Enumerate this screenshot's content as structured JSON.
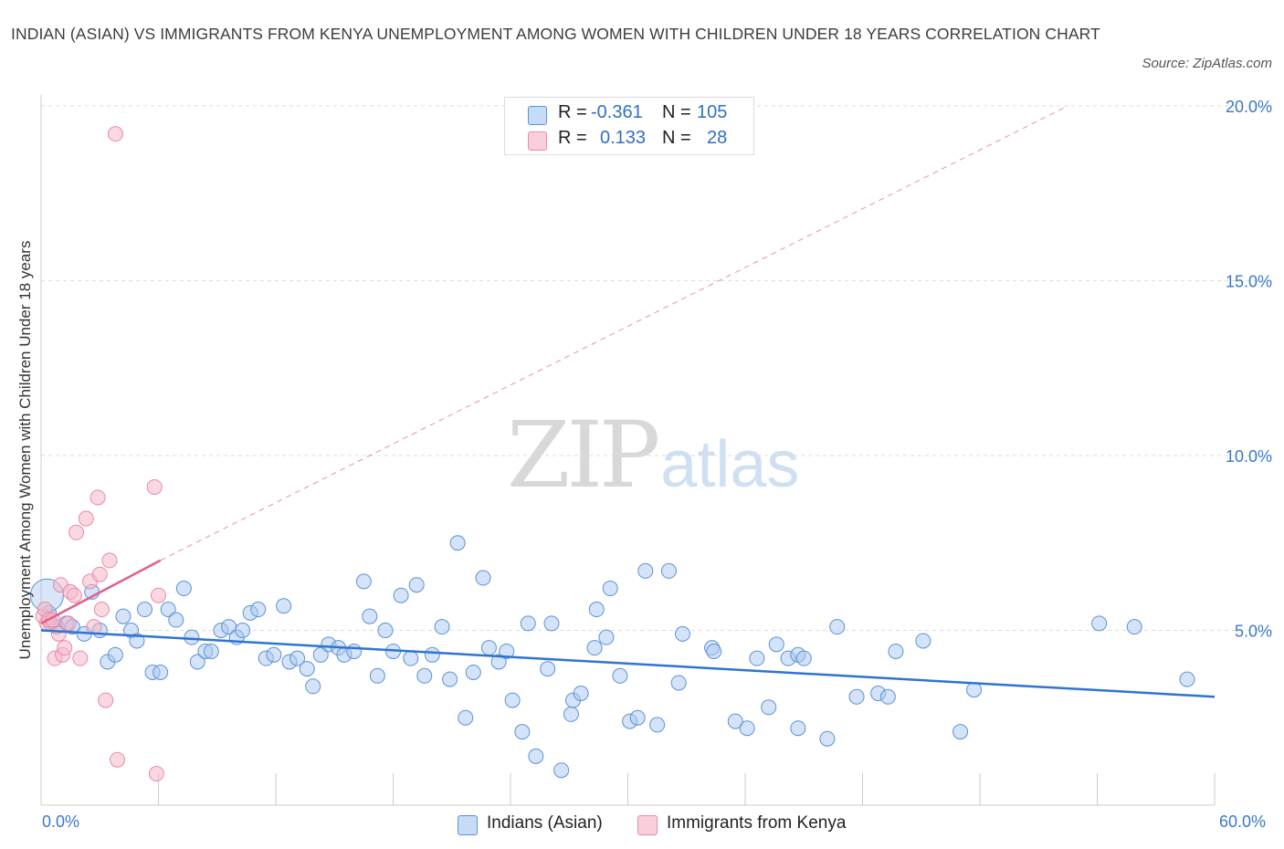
{
  "title": "INDIAN (ASIAN) VS IMMIGRANTS FROM KENYA UNEMPLOYMENT AMONG WOMEN WITH CHILDREN UNDER 18 YEARS CORRELATION CHART",
  "source": "Source: ZipAtlas.com",
  "watermark": {
    "zip": "ZIP",
    "atlas": "atlas"
  },
  "legend_top": {
    "rows": [
      {
        "r_label": "R =",
        "r_value": "-0.361",
        "n_label": "N =",
        "n_value": "105",
        "color": "#a9c8ef"
      },
      {
        "r_label": "R =",
        "r_value": "0.133",
        "n_label": "N =",
        "n_value": "28",
        "color": "#f6b8cb"
      }
    ]
  },
  "legend_bottom": {
    "series1": "Indians (Asian)",
    "series2": "Immigrants from Kenya"
  },
  "colors": {
    "blue_fill": "#a9c8ef",
    "blue_stroke": "#5b93d6",
    "blue_line": "#2e74d2",
    "pink_fill": "#f6b8cb",
    "pink_stroke": "#e88aa6",
    "pink_line": "#e0608a",
    "tick_text": "#3a78c9",
    "grid": "#dddddd"
  },
  "chart_data": {
    "type": "scatter",
    "title": "INDIAN (ASIAN) VS IMMIGRANTS FROM KENYA UNEMPLOYMENT AMONG WOMEN WITH CHILDREN UNDER 18 YEARS CORRELATION CHART",
    "xlabel": "",
    "ylabel": "Unemployment Among Women with Children Under 18 years",
    "xlim": [
      0,
      60
    ],
    "ylim": [
      0,
      20
    ],
    "x_tick_labels": [
      "0.0%",
      "60.0%"
    ],
    "y_ticks": [
      5,
      10,
      15,
      20
    ],
    "y_tick_labels": [
      "5.0%",
      "10.0%",
      "15.0%",
      "20.0%"
    ],
    "grid": true,
    "legend_position": "top-center",
    "series": [
      {
        "name": "Indians (Asian)",
        "r": -0.361,
        "n": 105,
        "trend": {
          "x0": 0,
          "y0": 5.0,
          "x1": 60,
          "y1": 3.1
        },
        "points": [
          [
            0.4,
            5.5
          ],
          [
            0.5,
            5.2
          ],
          [
            0.8,
            5.1
          ],
          [
            1.3,
            5.2
          ],
          [
            1.6,
            5.1
          ],
          [
            2.2,
            4.9
          ],
          [
            2.6,
            6.1
          ],
          [
            3.0,
            5.0
          ],
          [
            3.4,
            4.1
          ],
          [
            3.8,
            4.3
          ],
          [
            4.2,
            5.4
          ],
          [
            4.6,
            5.0
          ],
          [
            4.9,
            4.7
          ],
          [
            5.3,
            5.6
          ],
          [
            5.7,
            3.8
          ],
          [
            6.1,
            3.8
          ],
          [
            6.5,
            5.6
          ],
          [
            6.9,
            5.3
          ],
          [
            7.3,
            6.2
          ],
          [
            7.7,
            4.8
          ],
          [
            8.0,
            4.1
          ],
          [
            8.4,
            4.4
          ],
          [
            8.7,
            4.4
          ],
          [
            9.2,
            5.0
          ],
          [
            9.6,
            5.1
          ],
          [
            10.0,
            4.8
          ],
          [
            10.3,
            5.0
          ],
          [
            10.7,
            5.5
          ],
          [
            11.1,
            5.6
          ],
          [
            11.5,
            4.2
          ],
          [
            11.9,
            4.3
          ],
          [
            12.4,
            5.7
          ],
          [
            12.7,
            4.1
          ],
          [
            13.1,
            4.2
          ],
          [
            13.6,
            3.9
          ],
          [
            13.9,
            3.4
          ],
          [
            14.3,
            4.3
          ],
          [
            14.7,
            4.6
          ],
          [
            15.2,
            4.5
          ],
          [
            15.5,
            4.3
          ],
          [
            16.0,
            4.4
          ],
          [
            16.5,
            6.4
          ],
          [
            16.8,
            5.4
          ],
          [
            17.2,
            3.7
          ],
          [
            17.6,
            5.0
          ],
          [
            18.0,
            4.4
          ],
          [
            18.4,
            6.0
          ],
          [
            18.9,
            4.2
          ],
          [
            19.2,
            6.3
          ],
          [
            19.6,
            3.7
          ],
          [
            20.0,
            4.3
          ],
          [
            20.5,
            5.1
          ],
          [
            20.9,
            3.6
          ],
          [
            21.3,
            7.5
          ],
          [
            21.7,
            2.5
          ],
          [
            22.1,
            3.8
          ],
          [
            22.6,
            6.5
          ],
          [
            22.9,
            4.5
          ],
          [
            23.4,
            4.1
          ],
          [
            23.8,
            4.4
          ],
          [
            24.1,
            3.0
          ],
          [
            24.6,
            2.1
          ],
          [
            24.9,
            5.2
          ],
          [
            25.3,
            1.4
          ],
          [
            25.9,
            3.9
          ],
          [
            26.1,
            5.2
          ],
          [
            26.6,
            1.0
          ],
          [
            27.1,
            2.6
          ],
          [
            27.2,
            3.0
          ],
          [
            27.6,
            3.2
          ],
          [
            28.3,
            4.5
          ],
          [
            28.4,
            5.6
          ],
          [
            28.9,
            4.8
          ],
          [
            29.1,
            6.2
          ],
          [
            29.6,
            3.7
          ],
          [
            30.1,
            2.4
          ],
          [
            30.5,
            2.5
          ],
          [
            30.9,
            6.7
          ],
          [
            31.5,
            2.3
          ],
          [
            32.1,
            6.7
          ],
          [
            32.6,
            3.5
          ],
          [
            32.8,
            4.9
          ],
          [
            34.3,
            4.5
          ],
          [
            34.4,
            4.4
          ],
          [
            35.5,
            2.4
          ],
          [
            36.1,
            2.2
          ],
          [
            36.6,
            4.2
          ],
          [
            37.2,
            2.8
          ],
          [
            37.6,
            4.6
          ],
          [
            38.2,
            4.2
          ],
          [
            38.7,
            2.2
          ],
          [
            38.7,
            4.3
          ],
          [
            39.0,
            4.2
          ],
          [
            40.2,
            1.9
          ],
          [
            40.7,
            5.1
          ],
          [
            41.7,
            3.1
          ],
          [
            42.8,
            3.2
          ],
          [
            43.3,
            3.1
          ],
          [
            43.7,
            4.4
          ],
          [
            45.1,
            4.7
          ],
          [
            47.0,
            2.1
          ],
          [
            47.7,
            3.3
          ],
          [
            54.1,
            5.2
          ],
          [
            55.9,
            5.1
          ],
          [
            58.6,
            3.6
          ]
        ]
      },
      {
        "name": "Immigrants from Kenya",
        "r": 0.133,
        "n": 28,
        "trend_solid": {
          "x0": 0,
          "y0": 5.2,
          "x1": 6.1,
          "y1": 7.0
        },
        "trend_dashed": {
          "x0": 6.1,
          "y0": 7.0,
          "x1": 52.5,
          "y1": 20.0
        },
        "points": [
          [
            0.1,
            5.4
          ],
          [
            0.2,
            5.6
          ],
          [
            0.3,
            5.2
          ],
          [
            0.4,
            5.3
          ],
          [
            0.6,
            5.3
          ],
          [
            0.7,
            4.2
          ],
          [
            0.9,
            4.9
          ],
          [
            1.0,
            6.3
          ],
          [
            1.1,
            4.3
          ],
          [
            1.2,
            4.5
          ],
          [
            1.4,
            5.2
          ],
          [
            1.5,
            6.1
          ],
          [
            1.7,
            6.0
          ],
          [
            1.8,
            7.8
          ],
          [
            2.0,
            4.2
          ],
          [
            2.3,
            8.2
          ],
          [
            2.5,
            6.4
          ],
          [
            2.7,
            5.1
          ],
          [
            2.9,
            8.8
          ],
          [
            3.0,
            6.6
          ],
          [
            3.1,
            5.6
          ],
          [
            3.3,
            3.0
          ],
          [
            3.5,
            7.0
          ],
          [
            3.9,
            1.3
          ],
          [
            3.8,
            19.2
          ],
          [
            5.8,
            9.1
          ],
          [
            5.9,
            0.9
          ],
          [
            6.0,
            6.0
          ]
        ]
      }
    ]
  }
}
